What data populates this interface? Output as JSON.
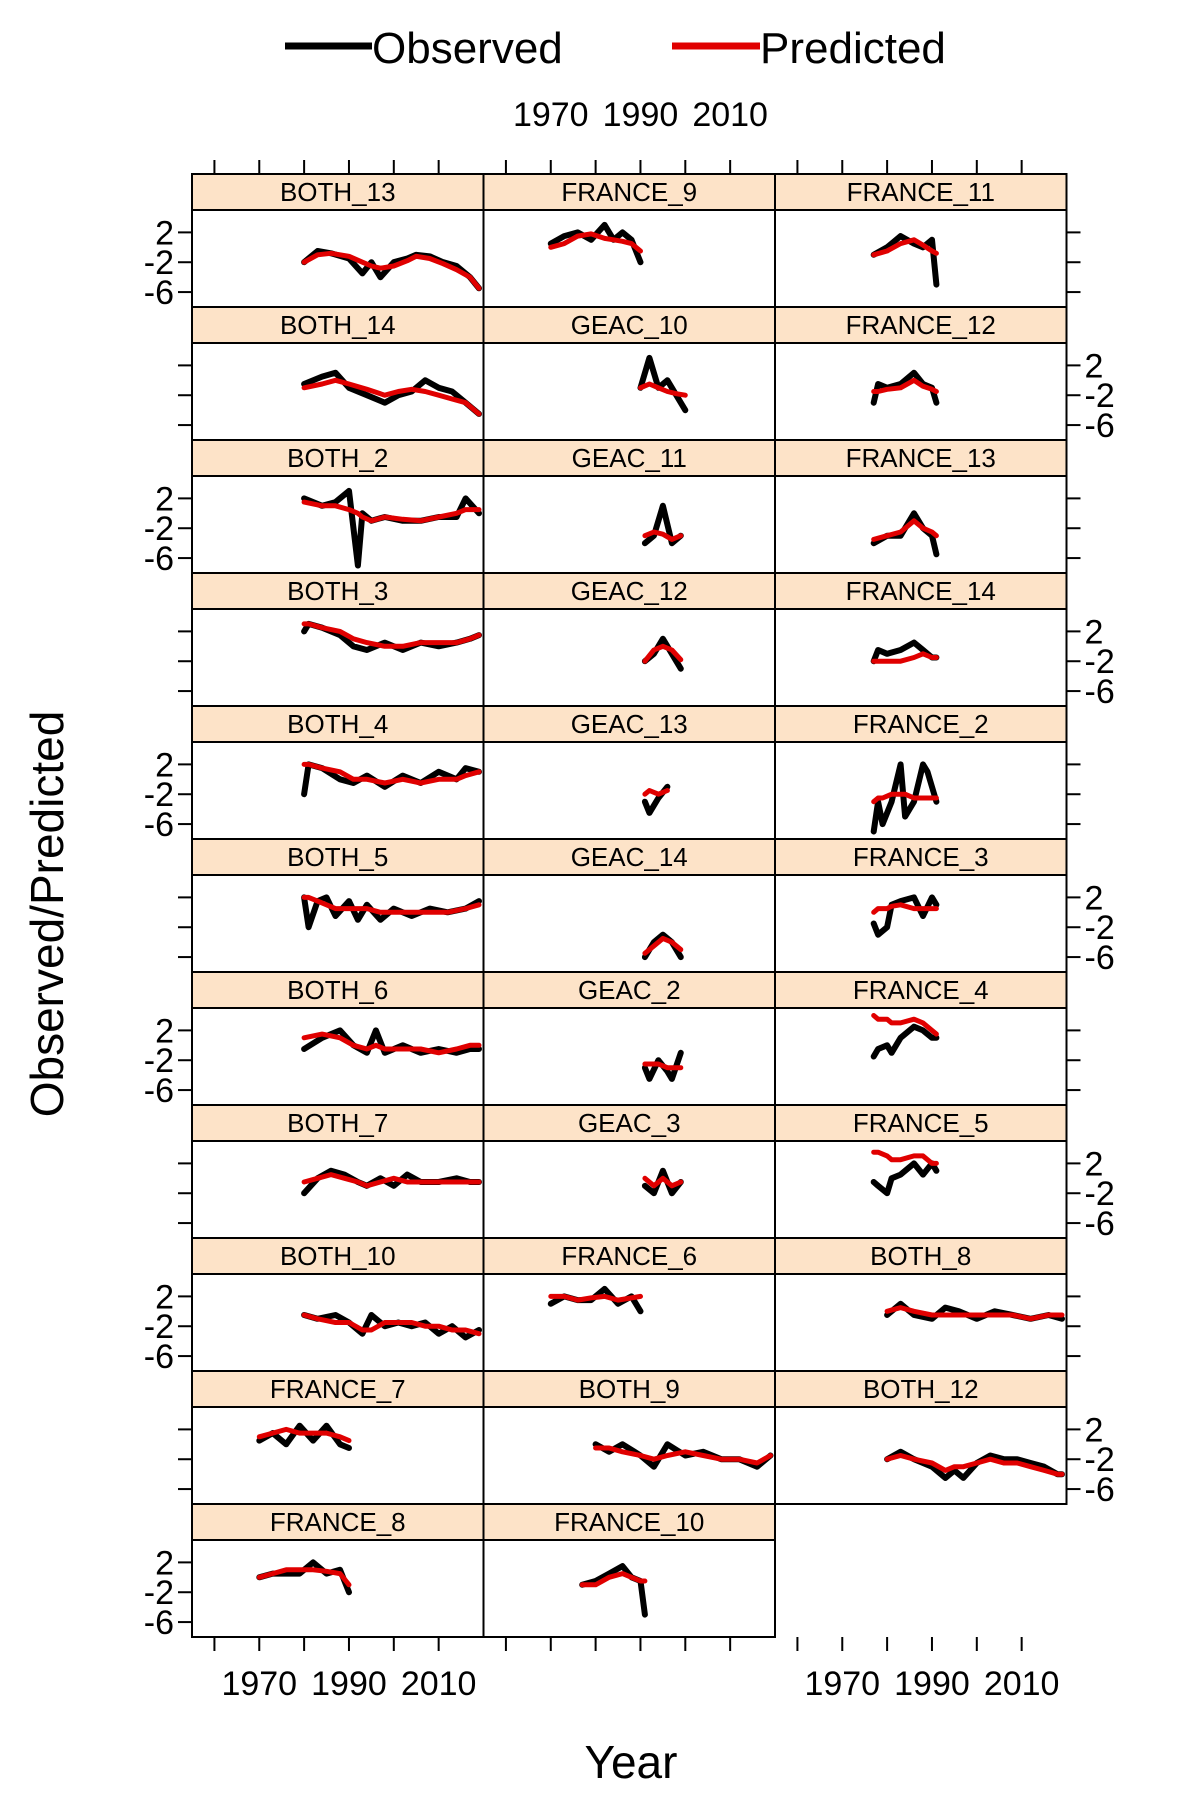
{
  "legend": {
    "observed": "Observed",
    "predicted": "Predicted"
  },
  "colors": {
    "observed": "#000000",
    "predicted": "#e00000",
    "strip": "#fde3c8"
  },
  "chart_data": {
    "type": "line",
    "xlabel": "Year",
    "ylabel": "Observed/Predicted",
    "xlim": [
      1955,
      2020
    ],
    "ylim": [
      -8,
      5
    ],
    "x_ticks": [
      1970,
      1990,
      2010
    ],
    "y_ticks": [
      2,
      -2,
      -6
    ],
    "series_names": [
      "Observed",
      "Predicted"
    ],
    "panels": [
      {
        "name": "BOTH_13",
        "x": [
          1980,
          1983,
          1986,
          1990,
          1993,
          1995,
          1997,
          2000,
          2003,
          2005,
          2008,
          2011,
          2014,
          2017,
          2019
        ],
        "observed": [
          -2,
          -0.5,
          -0.8,
          -1.5,
          -3.5,
          -2,
          -4,
          -2,
          -1.5,
          -1,
          -1.2,
          -2,
          -2.5,
          -4,
          -5.5
        ],
        "predicted": [
          -2,
          -1,
          -0.8,
          -1.2,
          -2,
          -2.5,
          -2.8,
          -2.5,
          -1.8,
          -1.2,
          -1.5,
          -2.2,
          -3,
          -4,
          -5.5
        ]
      },
      {
        "name": "FRANCE_9",
        "x": [
          1970,
          1973,
          1976,
          1979,
          1982,
          1984,
          1986,
          1988,
          1990
        ],
        "observed": [
          0.5,
          1.5,
          2,
          1,
          3,
          1,
          2,
          1,
          -2
        ],
        "predicted": [
          0,
          0.5,
          1.5,
          1.8,
          1.2,
          1,
          0.8,
          0.5,
          -0.5
        ]
      },
      {
        "name": "FRANCE_11",
        "x": [
          1977,
          1980,
          1983,
          1986,
          1988,
          1990,
          1991
        ],
        "observed": [
          -1,
          0,
          1.5,
          0.5,
          0,
          1,
          -5
        ],
        "predicted": [
          -1,
          -0.5,
          0.5,
          1,
          0.3,
          -0.5,
          -0.8
        ]
      },
      {
        "name": "BOTH_14",
        "x": [
          1980,
          1984,
          1987,
          1990,
          1994,
          1998,
          2001,
          2004,
          2007,
          2010,
          2013,
          2016,
          2019
        ],
        "observed": [
          -0.5,
          0.5,
          1,
          -1,
          -2,
          -3,
          -2,
          -1.5,
          0,
          -1,
          -1.5,
          -3,
          -4.5
        ],
        "predicted": [
          -1,
          -0.5,
          0,
          -0.5,
          -1.2,
          -2,
          -1.5,
          -1.2,
          -1.5,
          -2,
          -2.5,
          -3,
          -4.5
        ]
      },
      {
        "name": "GEAC_10",
        "x": [
          1990,
          1992,
          1994,
          1996,
          1998,
          2000
        ],
        "observed": [
          -1,
          3,
          -1,
          0,
          -2,
          -4
        ],
        "predicted": [
          -1,
          -0.5,
          -1,
          -1.5,
          -1.8,
          -2
        ]
      },
      {
        "name": "FRANCE_12",
        "x": [
          1977,
          1978,
          1980,
          1983,
          1986,
          1988,
          1990,
          1991
        ],
        "observed": [
          -3,
          -0.5,
          -1,
          -0.5,
          1,
          -0.5,
          -1,
          -3
        ],
        "predicted": [
          -1.5,
          -1.5,
          -1.2,
          -1,
          0,
          -0.8,
          -1.2,
          -1.5
        ]
      },
      {
        "name": "BOTH_2",
        "x": [
          1980,
          1984,
          1987,
          1990,
          1992,
          1993,
          1995,
          1998,
          2002,
          2006,
          2010,
          2014,
          2016,
          2019
        ],
        "observed": [
          2,
          1,
          1.5,
          3,
          -7,
          0,
          -1,
          -0.5,
          -1,
          -1,
          -0.5,
          -0.5,
          2,
          0
        ],
        "predicted": [
          1.5,
          1,
          1,
          0.5,
          0,
          -0.5,
          -1,
          -0.5,
          -0.8,
          -1,
          -0.5,
          0,
          0.5,
          0.5
        ]
      },
      {
        "name": "GEAC_11",
        "x": [
          1991,
          1993,
          1995,
          1997,
          1999
        ],
        "observed": [
          -4,
          -3,
          1,
          -4,
          -3
        ],
        "predicted": [
          -3,
          -2.5,
          -2.8,
          -3.5,
          -3
        ]
      },
      {
        "name": "FRANCE_13",
        "x": [
          1977,
          1980,
          1983,
          1986,
          1988,
          1990,
          1991
        ],
        "observed": [
          -4,
          -3,
          -3,
          0,
          -2,
          -3,
          -5.5
        ],
        "predicted": [
          -3.5,
          -3,
          -2.5,
          -1,
          -2,
          -2.5,
          -3
        ]
      },
      {
        "name": "BOTH_3",
        "x": [
          1980,
          1981,
          1984,
          1988,
          1991,
          1994,
          1998,
          2002,
          2006,
          2010,
          2014,
          2017,
          2019
        ],
        "observed": [
          2,
          3,
          2.5,
          1.5,
          0,
          -0.5,
          0.5,
          -0.5,
          0.5,
          0,
          0.5,
          1,
          1.5
        ],
        "predicted": [
          3,
          3,
          2.5,
          2,
          1,
          0.5,
          0,
          0,
          0.5,
          0.5,
          0.5,
          1,
          1.5
        ]
      },
      {
        "name": "GEAC_12",
        "x": [
          1991,
          1993,
          1995,
          1997,
          1999
        ],
        "observed": [
          -2,
          -1,
          1,
          -1,
          -3
        ],
        "predicted": [
          -2,
          -0.5,
          0,
          -0.5,
          -1.8
        ]
      },
      {
        "name": "FRANCE_14",
        "x": [
          1977,
          1978,
          1980,
          1983,
          1986,
          1988,
          1990,
          1991
        ],
        "observed": [
          -2,
          -0.5,
          -1,
          -0.5,
          0.5,
          -0.5,
          -1.5,
          -1.5
        ],
        "predicted": [
          -2,
          -2,
          -2,
          -2,
          -1.5,
          -1,
          -1.5,
          -1.5
        ]
      },
      {
        "name": "BOTH_4",
        "x": [
          1980,
          1981,
          1984,
          1988,
          1991,
          1994,
          1998,
          2002,
          2006,
          2010,
          2014,
          2016,
          2019
        ],
        "observed": [
          -2,
          2,
          1.5,
          0,
          -0.5,
          0.5,
          -1,
          0.5,
          -0.5,
          1,
          0,
          1.5,
          1
        ],
        "predicted": [
          2,
          2,
          1.5,
          1,
          0,
          0,
          -0.5,
          0,
          -0.5,
          0,
          0,
          0.5,
          1
        ]
      },
      {
        "name": "GEAC_13",
        "x": [
          1991,
          1992,
          1994,
          1996
        ],
        "observed": [
          -3,
          -4.5,
          -2.5,
          -1
        ],
        "predicted": [
          -2,
          -1.5,
          -2,
          -1.5
        ]
      },
      {
        "name": "FRANCE_2",
        "x": [
          1977,
          1978,
          1979,
          1981,
          1983,
          1984,
          1986,
          1988,
          1989,
          1991
        ],
        "observed": [
          -7,
          -3,
          -6,
          -3,
          2,
          -5,
          -3,
          2,
          1,
          -3
        ],
        "predicted": [
          -3,
          -2.5,
          -2.5,
          -2,
          -2,
          -2,
          -2.5,
          -2.5,
          -2.5,
          -2.5
        ]
      },
      {
        "name": "BOTH_5",
        "x": [
          1980,
          1981,
          1983,
          1985,
          1987,
          1990,
          1992,
          1994,
          1997,
          2000,
          2004,
          2008,
          2012,
          2016,
          2019
        ],
        "observed": [
          2,
          -2,
          1.5,
          2,
          -0.5,
          1.5,
          -1,
          1,
          -1,
          0.5,
          -0.5,
          0.5,
          0,
          0.5,
          1.5
        ],
        "predicted": [
          2,
          2,
          1.5,
          1,
          0.5,
          0.5,
          0.5,
          0.5,
          0,
          0,
          0,
          0,
          0,
          0.5,
          1
        ]
      },
      {
        "name": "GEAC_14",
        "x": [
          1991,
          1993,
          1995,
          1997,
          1999
        ],
        "observed": [
          -6,
          -4,
          -3,
          -4,
          -6
        ],
        "predicted": [
          -5.5,
          -4.5,
          -3.5,
          -4,
          -5
        ]
      },
      {
        "name": "FRANCE_3",
        "x": [
          1977,
          1978,
          1980,
          1981,
          1983,
          1986,
          1988,
          1990,
          1991
        ],
        "observed": [
          -1.5,
          -3,
          -2,
          1,
          1.5,
          2,
          -0.5,
          2,
          1
        ],
        "predicted": [
          0,
          0.5,
          0.5,
          0.8,
          1,
          0.5,
          0.5,
          0.5,
          0.5
        ]
      },
      {
        "name": "BOTH_6",
        "x": [
          1980,
          1984,
          1988,
          1991,
          1994,
          1996,
          1998,
          2002,
          2006,
          2010,
          2014,
          2017,
          2019
        ],
        "observed": [
          -0.5,
          1,
          2,
          0,
          -1,
          2,
          -1,
          0,
          -1,
          -0.5,
          -1,
          -0.5,
          -0.5
        ],
        "predicted": [
          1,
          1.5,
          1,
          0,
          -0.5,
          0,
          -0.5,
          -0.5,
          -0.5,
          -1,
          -0.5,
          0,
          0
        ]
      },
      {
        "name": "GEAC_2",
        "x": [
          1991,
          1992,
          1994,
          1996,
          1997,
          1999
        ],
        "observed": [
          -3,
          -4.5,
          -2,
          -3.5,
          -4.5,
          -1
        ],
        "predicted": [
          -2.5,
          -2.5,
          -2.5,
          -3,
          -3,
          -3
        ]
      },
      {
        "name": "FRANCE_4",
        "x": [
          1977,
          1978,
          1980,
          1981,
          1983,
          1986,
          1988,
          1990,
          1991
        ],
        "observed": [
          -1.5,
          -0.5,
          0,
          -1,
          1,
          2.5,
          2,
          1,
          1
        ],
        "predicted": [
          4,
          3.5,
          3.5,
          3,
          3,
          3.5,
          3,
          2,
          1.5
        ]
      },
      {
        "name": "BOTH_7",
        "x": [
          1980,
          1983,
          1986,
          1989,
          1992,
          1994,
          1997,
          2000,
          2003,
          2006,
          2010,
          2014,
          2017,
          2019
        ],
        "observed": [
          -2,
          0,
          1,
          0.5,
          -0.5,
          -1,
          0,
          -1,
          0.5,
          -0.5,
          -0.5,
          0,
          -0.5,
          -0.5
        ],
        "predicted": [
          -0.5,
          0,
          0.5,
          0,
          -0.5,
          -1,
          -0.5,
          0,
          -0.5,
          -0.5,
          -0.5,
          -0.5,
          -0.5,
          -0.5
        ]
      },
      {
        "name": "GEAC_3",
        "x": [
          1991,
          1993,
          1995,
          1997,
          1999
        ],
        "observed": [
          -1,
          -2,
          1,
          -2,
          -0.5
        ],
        "predicted": [
          0,
          -1,
          0,
          -1,
          -0.5
        ]
      },
      {
        "name": "FRANCE_5",
        "x": [
          1977,
          1978,
          1980,
          1981,
          1983,
          1986,
          1988,
          1990,
          1991
        ],
        "observed": [
          -0.5,
          -1,
          -2,
          0,
          0.5,
          2,
          0.5,
          2,
          1
        ],
        "predicted": [
          3.5,
          3.5,
          3,
          2.5,
          2.5,
          3,
          3,
          2,
          2
        ]
      },
      {
        "name": "BOTH_10",
        "x": [
          1980,
          1983,
          1987,
          1990,
          1993,
          1995,
          1998,
          2001,
          2004,
          2007,
          2010,
          2013,
          2016,
          2019
        ],
        "observed": [
          -0.5,
          -1,
          -0.5,
          -1.5,
          -3,
          -0.5,
          -2,
          -1.5,
          -2,
          -1.5,
          -3,
          -2,
          -3.5,
          -2.5
        ],
        "predicted": [
          -0.5,
          -1,
          -1.5,
          -1.5,
          -2.5,
          -2.5,
          -1.5,
          -1.5,
          -1.5,
          -2,
          -2,
          -2.5,
          -2.5,
          -3
        ]
      },
      {
        "name": "FRANCE_6",
        "x": [
          1970,
          1973,
          1976,
          1979,
          1982,
          1985,
          1988,
          1990
        ],
        "observed": [
          1,
          2,
          1.5,
          1.5,
          3,
          1,
          2,
          0
        ],
        "predicted": [
          2,
          2,
          1.5,
          1.8,
          2,
          1.5,
          1.8,
          2
        ]
      },
      {
        "name": "BOTH_8",
        "x": [
          1980,
          1983,
          1986,
          1990,
          1993,
          1996,
          2000,
          2004,
          2008,
          2012,
          2016,
          2019
        ],
        "observed": [
          -0.5,
          1,
          -0.5,
          -1,
          0.5,
          0,
          -1,
          0,
          -0.5,
          -1,
          -0.5,
          -1
        ],
        "predicted": [
          0,
          0.5,
          0,
          -0.5,
          -0.5,
          -0.5,
          -0.5,
          -0.5,
          -0.5,
          -1,
          -0.5,
          -0.5
        ]
      },
      {
        "name": "FRANCE_7",
        "x": [
          1970,
          1973,
          1976,
          1979,
          1982,
          1985,
          1988,
          1990
        ],
        "observed": [
          0.5,
          1.5,
          0,
          2.5,
          0.5,
          2.5,
          0,
          -0.5
        ],
        "predicted": [
          1,
          1.5,
          2,
          1.5,
          1.5,
          1.5,
          1,
          0.5
        ]
      },
      {
        "name": "BOTH_9",
        "x": [
          1980,
          1983,
          1986,
          1990,
          1993,
          1996,
          2000,
          2004,
          2008,
          2012,
          2016,
          2019
        ],
        "observed": [
          0,
          -1,
          0,
          -1.5,
          -3,
          0,
          -1.5,
          -1,
          -2,
          -2,
          -3,
          -1.5
        ],
        "predicted": [
          -0.5,
          -0.5,
          -1,
          -1.5,
          -2,
          -1.5,
          -1,
          -1.5,
          -2,
          -2,
          -2.5,
          -1.5
        ]
      },
      {
        "name": "BOTH_12",
        "x": [
          1980,
          1983,
          1986,
          1990,
          1993,
          1995,
          1997,
          2000,
          2003,
          2006,
          2009,
          2012,
          2015,
          2018,
          2019
        ],
        "observed": [
          -2,
          -1,
          -2,
          -3,
          -4.5,
          -3.5,
          -4.5,
          -2.5,
          -1.5,
          -2,
          -2,
          -2.5,
          -3,
          -4,
          -4
        ],
        "predicted": [
          -2,
          -1.5,
          -2,
          -2.5,
          -3.5,
          -3,
          -3,
          -2.5,
          -2,
          -2.5,
          -2.5,
          -3,
          -3.5,
          -4,
          -4
        ]
      },
      {
        "name": "FRANCE_8",
        "x": [
          1970,
          1973,
          1976,
          1979,
          1982,
          1985,
          1988,
          1990
        ],
        "observed": [
          0,
          0.5,
          0.5,
          0.5,
          2,
          0.5,
          1,
          -2
        ],
        "predicted": [
          0,
          0.5,
          1,
          1,
          1,
          0.8,
          0.5,
          -1
        ]
      },
      {
        "name": "FRANCE_10",
        "x": [
          1977,
          1980,
          1983,
          1986,
          1988,
          1990,
          1991
        ],
        "observed": [
          -1,
          -0.5,
          0.5,
          1.5,
          0,
          -0.5,
          -5
        ],
        "predicted": [
          -1,
          -1,
          0,
          0.5,
          0,
          -0.5,
          -0.5
        ]
      }
    ]
  }
}
